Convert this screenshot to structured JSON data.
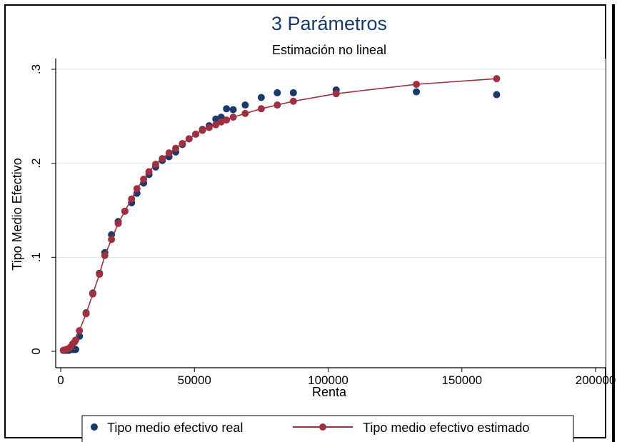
{
  "chart_data": {
    "type": "scatter",
    "title": "3 Parámetros",
    "subtitle": "Estimación no lineal",
    "xlabel": "Renta",
    "ylabel": "Tipo Medio Efectivo",
    "xlim": [
      0,
      200000
    ],
    "ylim": [
      0,
      0.3
    ],
    "xticks": [
      0,
      50000,
      100000,
      150000,
      200000
    ],
    "xtick_labels": [
      "0",
      "50000",
      "100000",
      "150000",
      "200000"
    ],
    "yticks": [
      0,
      0.1,
      0.2,
      0.3
    ],
    "ytick_labels": [
      "0",
      ".1",
      ".2",
      ".3"
    ],
    "grid": true,
    "legend_position": "bottom",
    "series": [
      {
        "name": "Tipo medio efectivo real",
        "style": "markers",
        "color": "#1a3a6e",
        "x": [
          1000,
          2000,
          3000,
          3800,
          4500,
          5200,
          5600,
          7000,
          9500,
          12000,
          14500,
          16500,
          19000,
          21500,
          24000,
          26500,
          28500,
          31000,
          33000,
          35500,
          38000,
          40500,
          43000,
          45500,
          48000,
          50500,
          53000,
          55500,
          58000,
          60000,
          62000,
          64500,
          69000,
          75000,
          81000,
          87000,
          103000,
          133000,
          163000
        ],
        "y": [
          0.001,
          0.001,
          0.001,
          0.002,
          0.002,
          0.002,
          0.002,
          0.016,
          0.041,
          0.062,
          0.083,
          0.105,
          0.124,
          0.138,
          0.149,
          0.158,
          0.168,
          0.179,
          0.188,
          0.196,
          0.203,
          0.207,
          0.212,
          0.22,
          0.226,
          0.231,
          0.236,
          0.24,
          0.247,
          0.249,
          0.258,
          0.257,
          0.262,
          0.27,
          0.275,
          0.275,
          0.278,
          0.276,
          0.273
        ]
      },
      {
        "name": "Tipo medio efectivo estimado",
        "style": "line+markers",
        "color": "#a03040",
        "x": [
          1000,
          2000,
          3000,
          3800,
          4500,
          5200,
          5600,
          7000,
          9500,
          12000,
          14500,
          16500,
          19000,
          21500,
          24000,
          26500,
          28500,
          31000,
          33000,
          35500,
          38000,
          40500,
          43000,
          45500,
          48000,
          50500,
          53000,
          55500,
          58000,
          60000,
          62000,
          64500,
          69000,
          75000,
          81000,
          87000,
          103000,
          133000,
          163000
        ],
        "y": [
          0.001,
          0.002,
          0.003,
          0.005,
          0.008,
          0.01,
          0.012,
          0.022,
          0.04,
          0.061,
          0.082,
          0.102,
          0.119,
          0.136,
          0.149,
          0.162,
          0.173,
          0.183,
          0.191,
          0.199,
          0.205,
          0.211,
          0.216,
          0.221,
          0.226,
          0.231,
          0.235,
          0.238,
          0.241,
          0.244,
          0.246,
          0.249,
          0.253,
          0.258,
          0.262,
          0.266,
          0.274,
          0.284,
          0.29
        ]
      }
    ]
  }
}
